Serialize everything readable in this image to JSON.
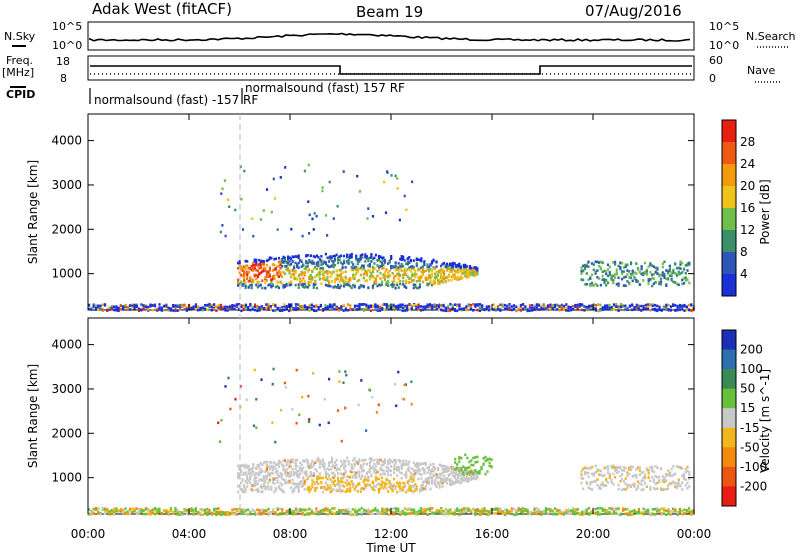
{
  "header": {
    "radar": "Adak West (fitACF)",
    "beam": "Beam 19",
    "date": "07/Aug/2016"
  },
  "top_panel": {
    "left_label_top": "N.Sky",
    "left_ticks": [
      "10^5",
      "10^0"
    ],
    "right_label_top": "N.Search",
    "right_ticks": [
      "10^5",
      "10^0"
    ],
    "freq_label": "Freq.",
    "freq_unit": "[MHz]",
    "freq_ticks": [
      "18",
      "8"
    ],
    "nave_label": "Nave",
    "nave_ticks": [
      "60",
      "0"
    ],
    "cpid_label": "CPID",
    "cpid_annotations": [
      "normalsound (fast) -157 RF",
      "normalsound (fast) 157 RF"
    ]
  },
  "power_scale": {
    "label": "Power [dB]",
    "ticks": [
      "4",
      "8",
      "12",
      "16",
      "20",
      "24",
      "28"
    ],
    "colors": [
      "#1b2fd6",
      "#2d56b8",
      "#3a8f6d",
      "#6fbf4a",
      "#f0c31a",
      "#f39a0e",
      "#ee5a12",
      "#e81f10"
    ]
  },
  "velocity_scale": {
    "label": "Velocity [m s^-1]",
    "ticks": [
      "200",
      "100",
      "50",
      "15",
      "-15",
      "-50",
      "-100",
      "-200"
    ],
    "colors": [
      "#1b2fb8",
      "#2e6fb0",
      "#3a8a55",
      "#66c03b",
      "#c8c8c8",
      "#f2b51c",
      "#f28a0e",
      "#ee5512",
      "#e81f10"
    ]
  },
  "chart_data": [
    {
      "type": "heatmap",
      "title": "Power",
      "xlabel": "Time UT",
      "ylabel": "Slant Range [km]",
      "x_ticks": [
        "00:00",
        "04:00",
        "08:00",
        "12:00",
        "16:00",
        "20:00",
        "00:00"
      ],
      "x_range_hours": [
        0,
        24
      ],
      "y_ticks": [
        1000,
        2000,
        3000,
        4000
      ],
      "y_range_km": [
        180,
        4600
      ],
      "regions": [
        {
          "t0": 5.9,
          "t1": 15.4,
          "r0": 700,
          "r1": 1450,
          "level": "12-20 dB"
        },
        {
          "t0": 6.0,
          "t1": 7.6,
          "r0": 700,
          "r1": 1450,
          "level": "24-28 dB"
        },
        {
          "t0": 19.5,
          "t1": 23.8,
          "r0": 750,
          "r1": 1300,
          "level": "8-16 dB"
        },
        {
          "t0": 0.0,
          "t1": 24.0,
          "r0": 180,
          "r1": 350,
          "level": "ground clutter"
        }
      ]
    },
    {
      "type": "heatmap",
      "title": "Velocity",
      "xlabel": "Time UT",
      "ylabel": "Slant Range [km]",
      "x_ticks": [
        "00:00",
        "04:00",
        "08:00",
        "12:00",
        "16:00",
        "20:00",
        "00:00"
      ],
      "x_range_hours": [
        0,
        24
      ],
      "y_ticks": [
        1000,
        2000,
        3000,
        4000
      ],
      "y_range_km": [
        180,
        4600
      ],
      "regions": [
        {
          "t0": 5.9,
          "t1": 15.4,
          "r0": 700,
          "r1": 1450,
          "level": "-15 to 15 m/s"
        },
        {
          "t0": 8.5,
          "t1": 13.0,
          "r0": 720,
          "r1": 1050,
          "level": "-15 to -50 m/s"
        },
        {
          "t0": 14.5,
          "t1": 16.0,
          "r0": 1100,
          "r1": 1550,
          "level": "15 to 50 m/s"
        },
        {
          "t0": 19.5,
          "t1": 23.8,
          "r0": 750,
          "r1": 1300,
          "level": "-15 to 15 m/s"
        }
      ]
    }
  ]
}
